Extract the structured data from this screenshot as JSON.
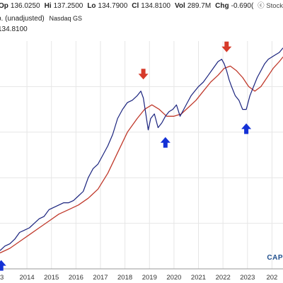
{
  "header": {
    "row1": [
      {
        "label": "Op",
        "value": "136.0250"
      },
      {
        "label": "Hi",
        "value": "137.2500"
      },
      {
        "label": "Lo",
        "value": "134.7900"
      },
      {
        "label": "Cl",
        "value": "134.8100"
      },
      {
        "label": "Vol",
        "value": "289.7M"
      },
      {
        "label": "Chg",
        "value": "-0.690("
      }
    ],
    "row2_prefix": "p. (unadjusted)",
    "row2_exchange": "Nasdaq GS",
    "last_price": "134.8100",
    "source": "ⓒ Stock"
  },
  "watermark": "CAP",
  "colors": {
    "price": "#1a237e",
    "moving_average": "#c0392b",
    "down_arrow": "#d63a2a",
    "up_arrow": "#1431d6",
    "grid": "#e6e6e6"
  },
  "chart_data": {
    "type": "line",
    "xlabel": "",
    "ylabel": "",
    "x_ticks": [
      "3",
      "2014",
      "2015",
      "2016",
      "2017",
      "2018",
      "2019",
      "2020",
      "2021",
      "2022",
      "2023",
      "202"
    ],
    "x_range": [
      2012.9,
      2024.45
    ],
    "y_range": [
      0,
      100
    ],
    "log_scale": true,
    "grid": true,
    "series": [
      {
        "kind": "price",
        "x": [
          2012.9,
          2013.1,
          2013.3,
          2013.5,
          2013.7,
          2013.9,
          2014.1,
          2014.3,
          2014.5,
          2014.7,
          2014.9,
          2015.1,
          2015.3,
          2015.5,
          2015.7,
          2015.9,
          2016.1,
          2016.3,
          2016.5,
          2016.7,
          2016.9,
          2017.1,
          2017.3,
          2017.5,
          2017.7,
          2017.9,
          2018.1,
          2018.3,
          2018.5,
          2018.65,
          2018.75,
          2018.85,
          2018.95,
          2019.05,
          2019.2,
          2019.35,
          2019.5,
          2019.65,
          2019.8,
          2019.95,
          2020.1,
          2020.25,
          2020.4,
          2020.55,
          2020.7,
          2020.85,
          2021.0,
          2021.2,
          2021.4,
          2021.6,
          2021.8,
          2021.95,
          2022.05,
          2022.15,
          2022.25,
          2022.35,
          2022.5,
          2022.65,
          2022.8,
          2022.95,
          2023.1,
          2023.25,
          2023.4,
          2023.55,
          2023.7,
          2023.85,
          2024.0,
          2024.15,
          2024.3,
          2024.45
        ],
        "y": [
          8,
          10,
          11,
          13,
          16,
          17,
          18,
          20,
          22,
          23,
          26,
          27,
          28,
          29,
          29,
          30,
          32,
          34,
          40,
          44,
          46,
          50,
          54,
          59,
          66,
          70,
          73,
          74,
          76,
          78,
          75,
          68,
          61,
          66,
          68,
          62,
          64,
          67,
          69,
          70,
          72,
          67,
          70,
          73,
          76,
          78,
          80,
          82,
          85,
          88,
          91,
          92,
          90,
          87,
          83,
          80,
          76,
          74,
          70,
          70,
          76,
          80,
          84,
          87,
          90,
          92,
          93,
          94,
          95,
          97
        ]
      },
      {
        "kind": "moving-average",
        "x": [
          2012.9,
          2013.3,
          2013.7,
          2014.1,
          2014.5,
          2014.9,
          2015.3,
          2015.7,
          2016.1,
          2016.5,
          2016.9,
          2017.3,
          2017.7,
          2018.1,
          2018.5,
          2018.8,
          2019.1,
          2019.4,
          2019.7,
          2020.0,
          2020.3,
          2020.6,
          2020.9,
          2021.2,
          2021.5,
          2021.8,
          2022.05,
          2022.3,
          2022.55,
          2022.8,
          2023.05,
          2023.3,
          2023.55,
          2023.8,
          2024.05,
          2024.3,
          2024.45
        ],
        "y": [
          7,
          9,
          12,
          15,
          18,
          21,
          24,
          26,
          28,
          31,
          35,
          42,
          51,
          60,
          66,
          70,
          72,
          70,
          67,
          67,
          68,
          71,
          74,
          78,
          82,
          85,
          88,
          89,
          87,
          84,
          80,
          78,
          80,
          84,
          88,
          91,
          93
        ]
      }
    ],
    "annotations": [
      {
        "kind": "down-arrow",
        "x": 2018.75,
        "y": 85
      },
      {
        "kind": "up-arrow",
        "x": 2019.65,
        "y": 56
      },
      {
        "kind": "down-arrow",
        "x": 2022.15,
        "y": 97
      },
      {
        "kind": "up-arrow",
        "x": 2022.95,
        "y": 62
      },
      {
        "kind": "up-arrow",
        "x": 2012.95,
        "y": 2
      }
    ]
  }
}
